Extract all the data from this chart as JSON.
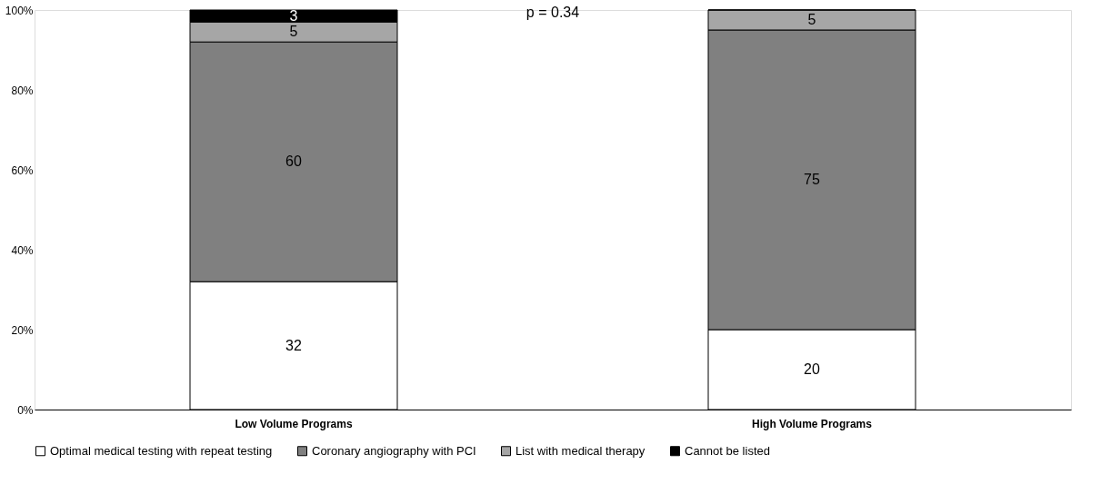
{
  "chart_data": {
    "type": "bar",
    "stacked": true,
    "categories": [
      "Low Volume Programs",
      "High Volume Programs"
    ],
    "series": [
      {
        "name": "Optimal medical testing with repeat testing",
        "color": "#ffffff",
        "values": [
          32,
          20
        ],
        "value_labels": [
          "32",
          "20"
        ]
      },
      {
        "name": "Coronary angiography with PCI",
        "color": "#808080",
        "values": [
          60,
          75
        ],
        "value_labels": [
          "60",
          "75"
        ]
      },
      {
        "name": "List with medical therapy",
        "color": "#a6a6a6",
        "values": [
          5,
          5
        ],
        "value_labels": [
          "5",
          "5"
        ]
      },
      {
        "name": "Cannot be listed",
        "color": "#000000",
        "values": [
          3,
          0
        ],
        "value_labels": [
          "3",
          null
        ]
      }
    ],
    "ylim": [
      0,
      100
    ],
    "yticks": [
      {
        "value": 0,
        "label": "0%"
      },
      {
        "value": 20,
        "label": "20%"
      },
      {
        "value": 40,
        "label": "40%"
      },
      {
        "value": 60,
        "label": "60%"
      },
      {
        "value": 80,
        "label": "80%"
      },
      {
        "value": 100,
        "label": "100%"
      }
    ],
    "annotations": [
      "p = 0.34"
    ],
    "grid": false,
    "legend": "bottom"
  }
}
